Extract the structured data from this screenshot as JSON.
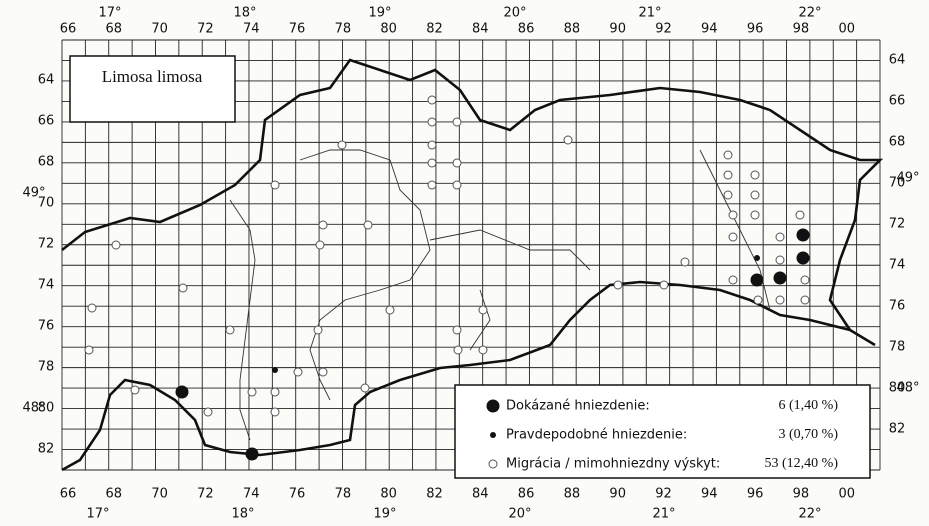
{
  "map": {
    "title": "Limosa limosa",
    "columns": [
      "66",
      "68",
      "70",
      "72",
      "74",
      "76",
      "78",
      "80",
      "82",
      "84",
      "86",
      "88",
      "90",
      "92",
      "94",
      "96",
      "98",
      "00"
    ],
    "rows": [
      "64",
      "66",
      "68",
      "70",
      "72",
      "74",
      "76",
      "78",
      "80",
      "82"
    ],
    "longitudes_top": [
      "17°",
      "18°",
      "19°",
      "20°",
      "21°",
      "22°"
    ],
    "longitudes_bottom": [
      "17°",
      "18°",
      "19°",
      "20°",
      "21°",
      "22°"
    ],
    "latitudes": [
      "49°",
      "48°"
    ],
    "legend": [
      {
        "label": "Dokázané hniezdenie:",
        "count": "6 (1,40 %)"
      },
      {
        "label": "Pravdepodobné hniezdenie:",
        "count": "3 (0,70 %)"
      },
      {
        "label": "Migrácia / mimohniezdny výskyt:",
        "count": "53 (12,40 %)"
      }
    ]
  }
}
